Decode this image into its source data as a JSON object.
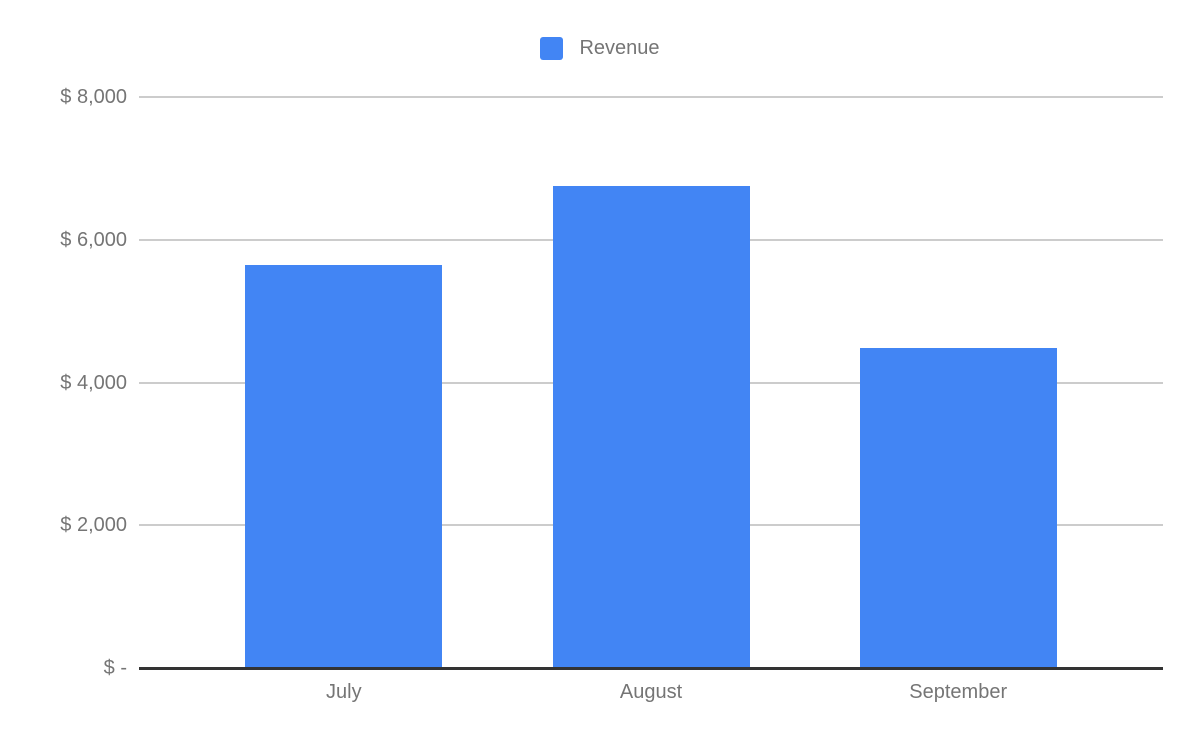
{
  "chart_data": {
    "type": "bar",
    "title": "",
    "xlabel": "",
    "ylabel": "",
    "legend": {
      "label": "Revenue",
      "position": "top-center",
      "swatch_color": "#4285F4"
    },
    "categories": [
      "July",
      "August",
      "September"
    ],
    "series": [
      {
        "name": "Revenue",
        "color": "#4285F4",
        "values": [
          5650,
          6750,
          4480
        ]
      }
    ],
    "ylim": [
      0,
      8000
    ],
    "ytick_interval": 2000,
    "yticks": [
      {
        "value": 0,
        "label": "$ -"
      },
      {
        "value": 2000,
        "label": "$ 2,000"
      },
      {
        "value": 4000,
        "label": "$ 4,000"
      },
      {
        "value": 6000,
        "label": "$ 6,000"
      },
      {
        "value": 8000,
        "label": "$ 8,000"
      }
    ],
    "grid": true,
    "colors": {
      "bar": "#4285F4",
      "gridline": "#cccccc",
      "axis": "#333333",
      "text": "#757575",
      "background": "#ffffff"
    }
  }
}
